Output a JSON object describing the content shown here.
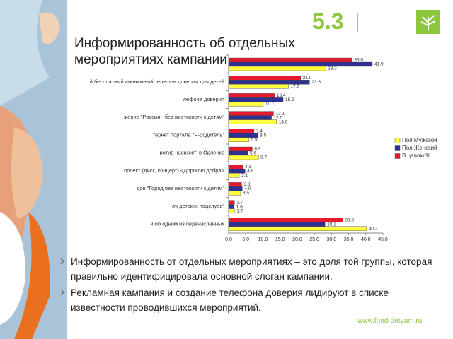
{
  "slide_number": "5.3",
  "footer": "www.fond-detyam.ru",
  "bullets": [
    "Информированность от отдельных мероприятиях – это доля той группы, которая правильно идентифицировала основной слоган кампании.",
    "Рекламная кампания и создание телефона доверия лидируют в списке известности проводившихся мероприятий."
  ],
  "chart_data": {
    "type": "hbar",
    "title": "Информированность об отдельных мероприятиях кампании",
    "categories": [
      null,
      "й бесплатный анонимный телефон доверия для детей",
      "лефона доверия",
      "жение \"Россия - без жестокости к детям\"",
      "тернет портала \"Я-родитель\"",
      "ротив насилия\" в Орленке",
      " проект (диск, концерт) <Дорогою добра>",
      "дов \"Город без жестокости к детям\"",
      "яч детских поцелуев\"",
      "и об одном из перечисленных"
    ],
    "series": [
      {
        "name": "В целом  %",
        "color": "#e8192c",
        "values": [
          36.0,
          21.0,
          13.4,
          13.1,
          7.4,
          6.9,
          4.1,
          3.8,
          1.7,
          33.3
        ],
        "value_labels": [
          "36.0",
          "21.0",
          "13.4",
          "13.1",
          "7.4",
          "6.9",
          "4.1",
          "3.8",
          "1.7",
          "33.3"
        ]
      },
      {
        "name": "Пол Женский",
        "color": "#2e3192",
        "values": [
          41.9,
          23.6,
          15.9,
          12.5,
          8.5,
          5.6,
          4.8,
          4.0,
          1.6,
          28.1
        ],
        "value_labels": [
          "41.9",
          "23.6",
          "15.9",
          "12.5",
          "8.5",
          "5.6",
          "4.8",
          "4.0",
          "1.6",
          "28.1"
        ]
      },
      {
        "name": "Пол Мужской",
        "color": "#ffff40",
        "values": [
          28.3,
          17.5,
          10.1,
          14.0,
          5.9,
          8.7,
          3.1,
          3.5,
          1.7,
          40.2
        ],
        "value_labels": [
          "28.3",
          "17.5",
          "10.1",
          "14.0",
          "5.9",
          "8.7",
          "3.1",
          "3.5",
          "1.7",
          "40.2"
        ]
      }
    ],
    "xlim": [
      0,
      45
    ],
    "xticks": [
      {
        "value": 0,
        "label": "0.0"
      },
      {
        "value": 5,
        "label": "5.0"
      },
      {
        "value": 10,
        "label": "10.0"
      },
      {
        "value": 15,
        "label": "15.0"
      },
      {
        "value": 20,
        "label": "20.0"
      },
      {
        "value": 25,
        "label": "25.0"
      },
      {
        "value": 30,
        "label": "30.0"
      },
      {
        "value": 35,
        "label": "35.0"
      },
      {
        "value": 40,
        "label": "40.0"
      },
      {
        "value": 45,
        "label": "45.0"
      }
    ],
    "legend": "right",
    "legend_reversed": true
  }
}
